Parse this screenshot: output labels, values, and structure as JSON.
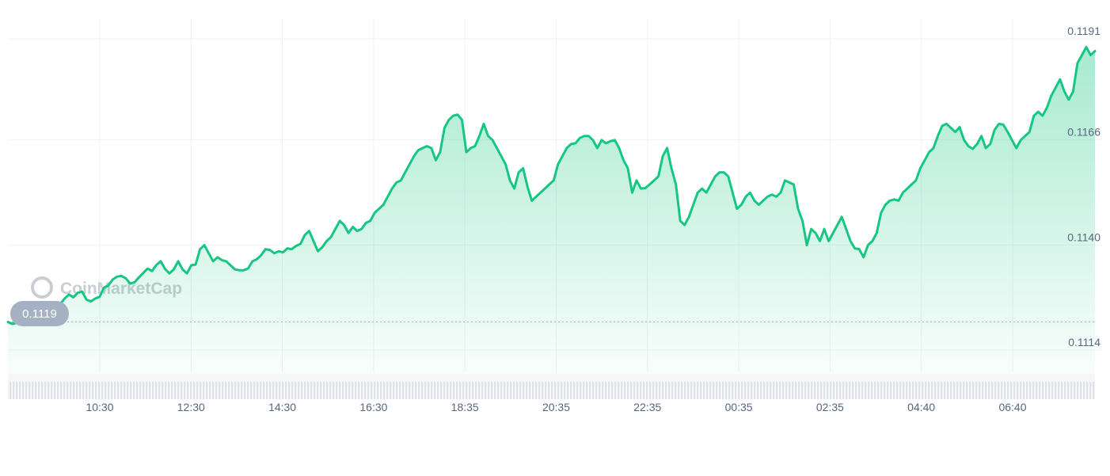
{
  "watermark": {
    "text": "CoinMarketCap"
  },
  "reference_badge": {
    "label": "0.1119"
  },
  "colors": {
    "line": "#16c784",
    "below_reference": "#ea3943",
    "grid": "#eff2f5",
    "tick_text": "#58667e",
    "badge_bg": "#a6b0c3"
  },
  "chart_data": {
    "type": "area",
    "title": "",
    "xlabel": "",
    "ylabel": "",
    "y_ticks": [
      "0.1114",
      "0.1140",
      "0.1166",
      "0.1191"
    ],
    "y_tick_values": [
      0.1114,
      0.114,
      0.1166,
      0.1191
    ],
    "x_ticks": [
      "10:30",
      "12:30",
      "14:30",
      "16:30",
      "18:35",
      "20:35",
      "22:35",
      "00:35",
      "02:35",
      "04:40",
      "06:40"
    ],
    "ylim": [
      0.1094,
      0.1196
    ],
    "reference_value": 0.1119,
    "grid": true,
    "y_axis_position": "right",
    "series": [
      {
        "values": [
          0.1119,
          0.11185,
          0.11188,
          0.11183,
          0.11192,
          0.11205,
          0.11201,
          0.11187,
          0.1119,
          0.11197,
          0.11205,
          0.11218,
          0.11235,
          0.11248,
          0.11258,
          0.11251,
          0.11262,
          0.11265,
          0.11245,
          0.11241,
          0.11248,
          0.11252,
          0.11275,
          0.1128,
          0.11295,
          0.11302,
          0.11304,
          0.11298,
          0.11285,
          0.11288,
          0.113,
          0.11311,
          0.11322,
          0.11316,
          0.11331,
          0.1134,
          0.11321,
          0.1131,
          0.1132,
          0.1134,
          0.1132,
          0.1131,
          0.1133,
          0.11332,
          0.1137,
          0.1138,
          0.1136,
          0.1134,
          0.1135,
          0.11343,
          0.1134,
          0.1133,
          0.1132,
          0.11318,
          0.11318,
          0.11322,
          0.1134,
          0.11345,
          0.11355,
          0.1137,
          0.11368,
          0.1136,
          0.11365,
          0.11362,
          0.11372,
          0.1137,
          0.11378,
          0.11383,
          0.11405,
          0.11415,
          0.1139,
          0.11365,
          0.11375,
          0.1139,
          0.114,
          0.1142,
          0.1144,
          0.1143,
          0.1141,
          0.11425,
          0.11415,
          0.1142,
          0.11435,
          0.1144,
          0.1146,
          0.1147,
          0.1148,
          0.115,
          0.1152,
          0.11535,
          0.1154,
          0.1156,
          0.1158,
          0.116,
          0.11615,
          0.1162,
          0.11625,
          0.1162,
          0.1159,
          0.1161,
          0.1167,
          0.1169,
          0.117,
          0.11703,
          0.1169,
          0.1161,
          0.1162,
          0.11625,
          0.1165,
          0.1168,
          0.1165,
          0.1164,
          0.1162,
          0.116,
          0.1158,
          0.1154,
          0.1152,
          0.1156,
          0.1157,
          0.11525,
          0.1149,
          0.115,
          0.1151,
          0.1152,
          0.1153,
          0.1154,
          0.1158,
          0.116,
          0.1162,
          0.1163,
          0.11632,
          0.11645,
          0.1165,
          0.1165,
          0.1164,
          0.1162,
          0.1164,
          0.11632,
          0.11637,
          0.1164,
          0.1162,
          0.1159,
          0.1157,
          0.1151,
          0.1154,
          0.1152,
          0.11521,
          0.1153,
          0.1154,
          0.1155,
          0.116,
          0.1162,
          0.1157,
          0.1153,
          0.1144,
          0.1143,
          0.1145,
          0.1148,
          0.1151,
          0.1152,
          0.1151,
          0.1153,
          0.1155,
          0.1156,
          0.1156,
          0.1155,
          0.1151,
          0.1147,
          0.1148,
          0.115,
          0.1151,
          0.1149,
          0.1148,
          0.1149,
          0.115,
          0.11505,
          0.115,
          0.1151,
          0.1154,
          0.11535,
          0.1153,
          0.1147,
          0.1144,
          0.1138,
          0.1142,
          0.1141,
          0.1139,
          0.1142,
          0.1139,
          0.1141,
          0.1143,
          0.1145,
          0.1142,
          0.1139,
          0.11372,
          0.1137,
          0.1135,
          0.1138,
          0.1139,
          0.1141,
          0.1146,
          0.1148,
          0.1149,
          0.11493,
          0.1149,
          0.1151,
          0.1152,
          0.1153,
          0.1154,
          0.1157,
          0.1159,
          0.1161,
          0.1162,
          0.1165,
          0.11675,
          0.1168,
          0.1167,
          0.1166,
          0.11672,
          0.1164,
          0.11625,
          0.11618,
          0.1163,
          0.1165,
          0.1162,
          0.1163,
          0.11665,
          0.1168,
          0.11678,
          0.1166,
          0.1164,
          0.1162,
          0.1164,
          0.1165,
          0.1166,
          0.117,
          0.1171,
          0.117,
          0.1172,
          0.1175,
          0.1177,
          0.1179,
          0.1176,
          0.1174,
          0.1176,
          0.1183,
          0.1185,
          0.1187,
          0.1185,
          0.1186
        ]
      }
    ]
  }
}
